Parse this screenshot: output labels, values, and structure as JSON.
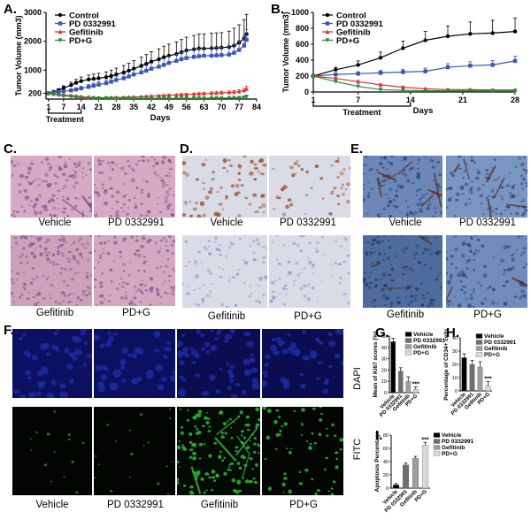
{
  "panels": {
    "A": "A.",
    "B": "B.",
    "C": "C.",
    "D": "D.",
    "E": "E.",
    "F": "F.",
    "G": "G.",
    "H": "H.",
    "I": "I."
  },
  "chart_data": [
    {
      "id": "A",
      "type": "line",
      "xlabel": "Days",
      "ylabel": "Tumor Volume (mm3)",
      "xlim": [
        0,
        84
      ],
      "ylim": [
        0,
        3000
      ],
      "xticks": [
        1,
        7,
        14,
        21,
        28,
        35,
        42,
        49,
        56,
        63,
        70,
        77,
        84
      ],
      "yticks": [
        200,
        1000,
        2000,
        3000
      ],
      "ytick_labels": [
        "200",
        "1000",
        "2000",
        "3000"
      ],
      "treatment_label": "Treatment",
      "treatment_range": [
        1,
        14
      ],
      "legend": [
        "Control",
        "PD 0332991",
        "Gefitinib",
        "PD+G"
      ],
      "series": [
        {
          "name": "Control",
          "color": "#000000",
          "marker": "circle",
          "x": [
            1,
            3,
            5,
            7,
            10,
            12,
            14,
            17,
            19,
            21,
            24,
            26,
            28,
            31,
            33,
            35,
            38,
            40,
            42,
            45,
            47,
            49,
            52,
            54,
            56,
            59,
            61,
            63,
            66,
            68,
            70,
            73,
            75,
            77,
            79,
            80
          ],
          "y": [
            200,
            250,
            300,
            380,
            480,
            560,
            620,
            680,
            700,
            720,
            760,
            800,
            850,
            920,
            980,
            1050,
            1150,
            1220,
            1300,
            1380,
            1450,
            1500,
            1560,
            1620,
            1680,
            1720,
            1750,
            1750,
            1760,
            1770,
            1780,
            1800,
            1850,
            1950,
            2100,
            2250
          ],
          "err": [
            30,
            40,
            60,
            80,
            100,
            120,
            140,
            150,
            160,
            170,
            180,
            200,
            220,
            240,
            260,
            280,
            300,
            320,
            340,
            360,
            380,
            400,
            420,
            440,
            460,
            480,
            500,
            500,
            520,
            520,
            520,
            550,
            600,
            620,
            650,
            680
          ]
        },
        {
          "name": "PD 0332991",
          "color": "#3a55b8",
          "marker": "square",
          "x": [
            1,
            3,
            5,
            7,
            10,
            12,
            14,
            17,
            19,
            21,
            24,
            26,
            28,
            31,
            33,
            35,
            38,
            40,
            42,
            45,
            47,
            49,
            52,
            54,
            56,
            59,
            61,
            63,
            66,
            68,
            70,
            73,
            75,
            77,
            79,
            80
          ],
          "y": [
            200,
            220,
            240,
            270,
            300,
            330,
            370,
            420,
            460,
            500,
            550,
            600,
            660,
            720,
            780,
            850,
            920,
            980,
            1050,
            1120,
            1180,
            1250,
            1320,
            1380,
            1420,
            1460,
            1480,
            1500,
            1500,
            1510,
            1520,
            1540,
            1600,
            1700,
            1850,
            2050
          ],
          "err": [
            20,
            25,
            30,
            40,
            50,
            60,
            70,
            80,
            90,
            100,
            110,
            120,
            130,
            140,
            150,
            160,
            170,
            180,
            190,
            200,
            210,
            220,
            230,
            240,
            250,
            260,
            270,
            280,
            280,
            280,
            280,
            290,
            300,
            320,
            340,
            360
          ]
        },
        {
          "name": "Gefitinib",
          "color": "#e03030",
          "marker": "triangle",
          "x": [
            1,
            3,
            5,
            7,
            10,
            12,
            14,
            17,
            19,
            21,
            24,
            26,
            28,
            31,
            33,
            35,
            38,
            40,
            42,
            45,
            47,
            49,
            52,
            54,
            56,
            59,
            61,
            63,
            66,
            68,
            70,
            73,
            75,
            77,
            79,
            80
          ],
          "y": [
            200,
            180,
            160,
            140,
            120,
            100,
            80,
            60,
            50,
            45,
            45,
            50,
            55,
            60,
            65,
            70,
            80,
            90,
            100,
            110,
            120,
            130,
            140,
            150,
            160,
            170,
            180,
            190,
            200,
            210,
            220,
            230,
            240,
            260,
            300,
            350
          ],
          "err": [
            20,
            20,
            20,
            20,
            20,
            20,
            15,
            15,
            15,
            15,
            15,
            15,
            15,
            15,
            20,
            20,
            20,
            25,
            25,
            25,
            30,
            30,
            30,
            35,
            35,
            35,
            40,
            40,
            45,
            45,
            50,
            50,
            55,
            60,
            70,
            90
          ]
        },
        {
          "name": "PD+G",
          "color": "#2e8b3e",
          "marker": "triangle-down",
          "x": [
            1,
            3,
            5,
            7,
            10,
            12,
            14,
            17,
            19,
            21,
            24,
            26,
            28,
            31,
            33,
            35,
            38,
            40,
            42,
            45,
            47,
            49,
            52,
            54,
            56,
            59,
            61,
            63,
            66,
            68,
            70,
            73,
            75,
            77,
            79,
            80
          ],
          "y": [
            200,
            170,
            140,
            110,
            90,
            70,
            50,
            40,
            30,
            25,
            25,
            25,
            25,
            25,
            25,
            25,
            25,
            25,
            25,
            25,
            25,
            25,
            25,
            25,
            25,
            25,
            25,
            25,
            30,
            30,
            30,
            35,
            40,
            45,
            60,
            80
          ],
          "err": [
            15,
            15,
            15,
            15,
            12,
            12,
            10,
            10,
            10,
            8,
            8,
            8,
            8,
            8,
            8,
            8,
            8,
            8,
            8,
            8,
            8,
            8,
            8,
            8,
            8,
            8,
            8,
            8,
            10,
            10,
            10,
            10,
            12,
            14,
            18,
            22
          ]
        }
      ]
    },
    {
      "id": "B",
      "type": "line",
      "xlabel": "Days",
      "ylabel": "Tumor Volume (mm3)",
      "xlim": [
        1,
        28
      ],
      "ylim": [
        0,
        1000
      ],
      "xticks": [
        1,
        7,
        14,
        21,
        28
      ],
      "yticks": [
        0,
        200,
        400,
        600,
        800,
        1000
      ],
      "treatment_label": "Treatment",
      "treatment_range": [
        1,
        14
      ],
      "legend": [
        "Control",
        "PD 0332991",
        "Gefitinib",
        "PD+G"
      ],
      "series": [
        {
          "name": "Control",
          "color": "#000000",
          "marker": "circle",
          "x": [
            1,
            4,
            7,
            10,
            13,
            16,
            19,
            22,
            25,
            28
          ],
          "y": [
            200,
            280,
            340,
            430,
            550,
            650,
            700,
            730,
            740,
            760
          ],
          "err": [
            20,
            30,
            50,
            70,
            90,
            110,
            130,
            150,
            160,
            170
          ]
        },
        {
          "name": "PD 0332991",
          "color": "#3a55b8",
          "marker": "square",
          "x": [
            1,
            4,
            7,
            10,
            13,
            16,
            19,
            22,
            25,
            28
          ],
          "y": [
            200,
            220,
            230,
            240,
            250,
            260,
            310,
            330,
            340,
            390
          ],
          "err": [
            20,
            20,
            25,
            30,
            35,
            40,
            45,
            50,
            55,
            60
          ]
        },
        {
          "name": "Gefitinib",
          "color": "#e03030",
          "marker": "triangle",
          "x": [
            1,
            4,
            7,
            10,
            13,
            16,
            19,
            22,
            25,
            28
          ],
          "y": [
            200,
            170,
            130,
            90,
            60,
            40,
            30,
            30,
            25,
            25
          ],
          "err": [
            15,
            15,
            15,
            12,
            10,
            8,
            8,
            8,
            8,
            8
          ]
        },
        {
          "name": "PD+G",
          "color": "#2e8b3e",
          "marker": "triangle-down",
          "x": [
            1,
            4,
            7,
            10,
            13,
            16,
            19,
            22,
            25,
            28
          ],
          "y": [
            200,
            130,
            70,
            30,
            20,
            15,
            15,
            15,
            15,
            15
          ],
          "err": [
            15,
            12,
            10,
            8,
            6,
            5,
            5,
            5,
            5,
            5
          ]
        }
      ]
    },
    {
      "id": "G",
      "type": "bar",
      "ylabel": "Mean of Ki67 scores (%)",
      "ylim": [
        0,
        50
      ],
      "yticks": [
        0,
        10,
        20,
        30,
        40,
        50
      ],
      "categories": [
        "Vehicle",
        "PD 0332991",
        "Gefitinib",
        "PD+G"
      ],
      "values": [
        45,
        19,
        10,
        3
      ],
      "err": [
        3,
        3,
        4,
        2
      ],
      "colors": [
        "#000000",
        "#6e6e6e",
        "#9e9e9e",
        "#d8d8d8"
      ],
      "sig": [
        "",
        "",
        "",
        "***"
      ],
      "legend": [
        "Vehicle",
        "PD 0332991",
        "Gefitinib",
        "PD+G"
      ]
    },
    {
      "id": "H",
      "type": "bar",
      "ylabel": "Percentage of CD34+ cells",
      "ylim": [
        0,
        40
      ],
      "yticks": [
        0,
        10,
        20,
        30,
        40
      ],
      "categories": [
        "Vehicle",
        "PD 0332991",
        "Gefitinib",
        "PD+G"
      ],
      "values": [
        25,
        20,
        18,
        4
      ],
      "err": [
        3,
        3,
        4,
        3
      ],
      "colors": [
        "#000000",
        "#6e6e6e",
        "#9e9e9e",
        "#d8d8d8"
      ],
      "sig": [
        "",
        "",
        "",
        "***"
      ],
      "legend": [
        "Vehicle",
        "PD 0332991",
        "Gefitinib",
        "PD+G"
      ]
    },
    {
      "id": "I",
      "type": "bar",
      "ylabel": "Apoptosis Percentage",
      "ylim": [
        0,
        80
      ],
      "yticks": [
        0,
        20,
        40,
        60,
        80
      ],
      "categories": [
        "Vehicle",
        "PD 0332991",
        "Gefitinib",
        "PD+G"
      ],
      "values": [
        5,
        35,
        45,
        65
      ],
      "err": [
        2,
        3,
        3,
        4
      ],
      "colors": [
        "#000000",
        "#6e6e6e",
        "#9e9e9e",
        "#d8d8d8"
      ],
      "sig": [
        "",
        "",
        "",
        "***"
      ],
      "legend": [
        "Vehicle",
        "PD 0332991",
        "Gefitinib",
        "PD+G"
      ]
    }
  ],
  "captions": {
    "C": [
      "Vehicle",
      "PD  0332991",
      "Gefitinib",
      "PD+G"
    ],
    "D": [
      "Vehicle",
      "PD  0332991",
      "Gefitinib",
      "PD+G"
    ],
    "E": [
      "Vehicle",
      "PD  0332991",
      "Gefitinib",
      "PD+G"
    ],
    "F": [
      "Vehicle",
      "PD  0332991",
      "Gefitinib",
      "PD+G"
    ],
    "F_side": [
      "DAPI",
      "FITC"
    ]
  },
  "micrograph_colors": {
    "HE_pink": "#c48aa8",
    "HE_purple": "#8a5c92",
    "IHC_bg": "#d9dbe6",
    "IHC_brown": "#a0522d",
    "CD34_blue": "#4a6a9e",
    "DAPI_blue": "#1c2aa0",
    "FITC_green": "#2fbf3a"
  }
}
